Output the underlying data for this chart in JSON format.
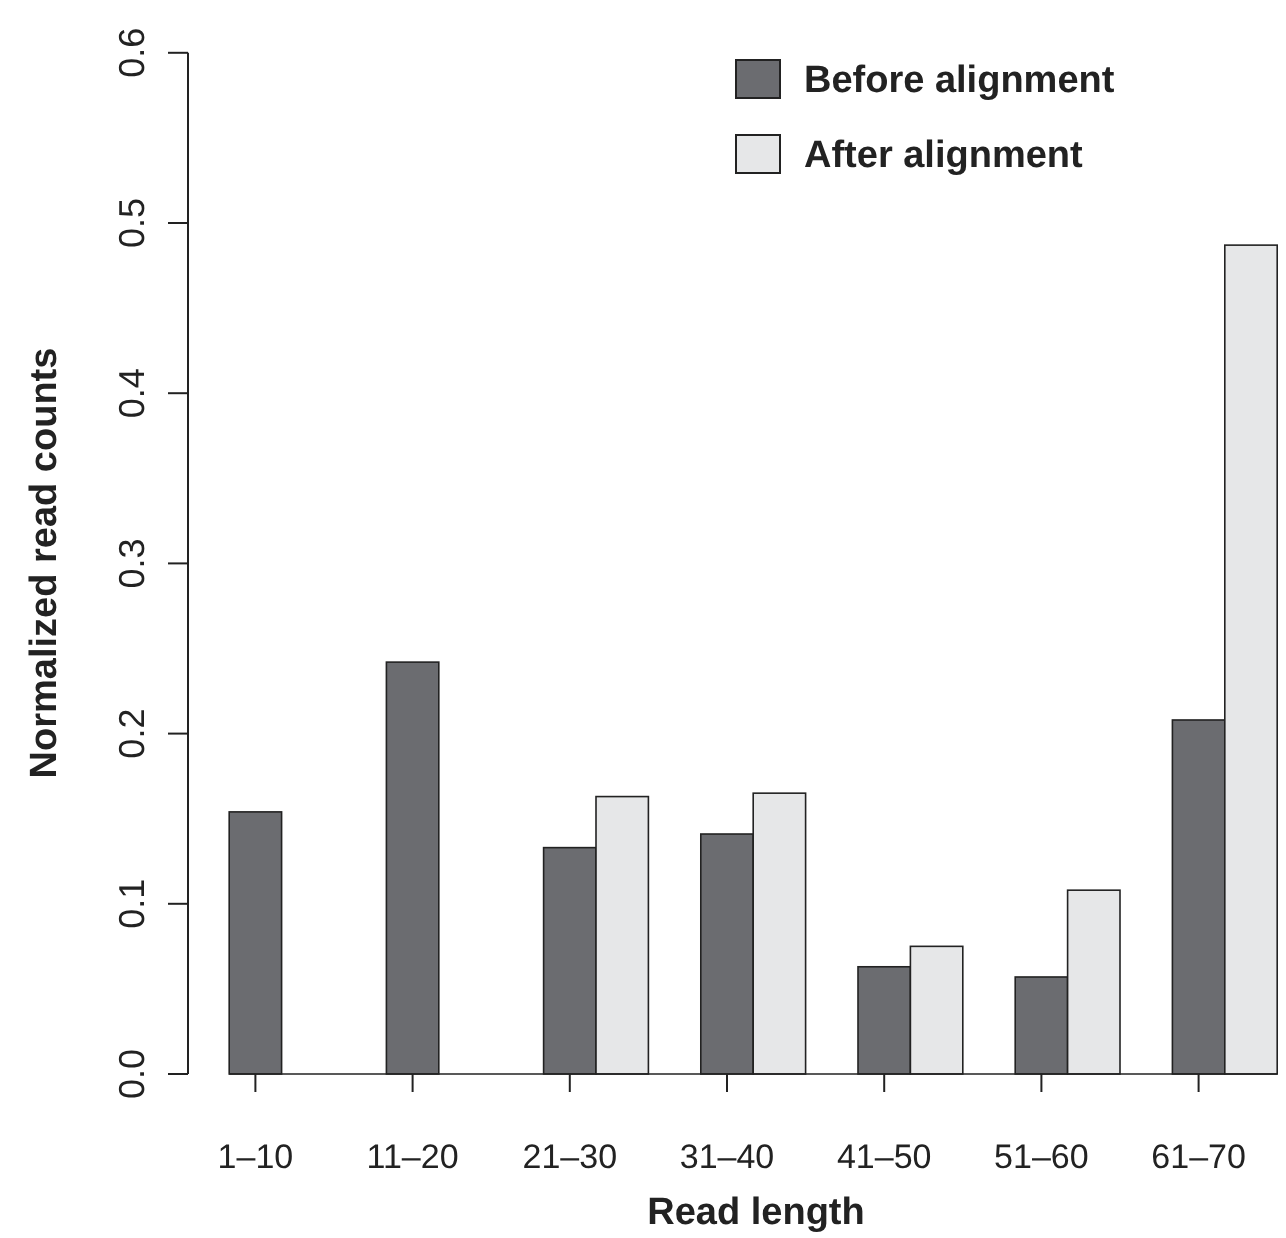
{
  "chart_data": {
    "type": "bar",
    "xlabel": "Read length",
    "ylabel": "Normalized read counts",
    "categories": [
      "1–10",
      "11–20",
      "21–30",
      "31–40",
      "41–50",
      "51–60",
      "61–70"
    ],
    "series": [
      {
        "name": "Before alignment",
        "color": "#6b6c70",
        "values": [
          0.154,
          0.242,
          0.133,
          0.141,
          0.063,
          0.057,
          0.208
        ]
      },
      {
        "name": "After alignment",
        "color": "#e6e7e8",
        "values": [
          0,
          0,
          0.163,
          0.165,
          0.075,
          0.108,
          0.487
        ]
      }
    ],
    "ylim": [
      0,
      0.6
    ],
    "yticks": [
      {
        "value": 0,
        "label": "0.0"
      },
      {
        "value": 0.1,
        "label": "0.1"
      },
      {
        "value": 0.2,
        "label": "0.2"
      },
      {
        "value": 0.3,
        "label": "0.3"
      },
      {
        "value": 0.4,
        "label": "0.4"
      },
      {
        "value": 0.5,
        "label": "0.5"
      },
      {
        "value": 0.6,
        "label": "0.6"
      }
    ],
    "grid": false,
    "legend": "top right"
  }
}
